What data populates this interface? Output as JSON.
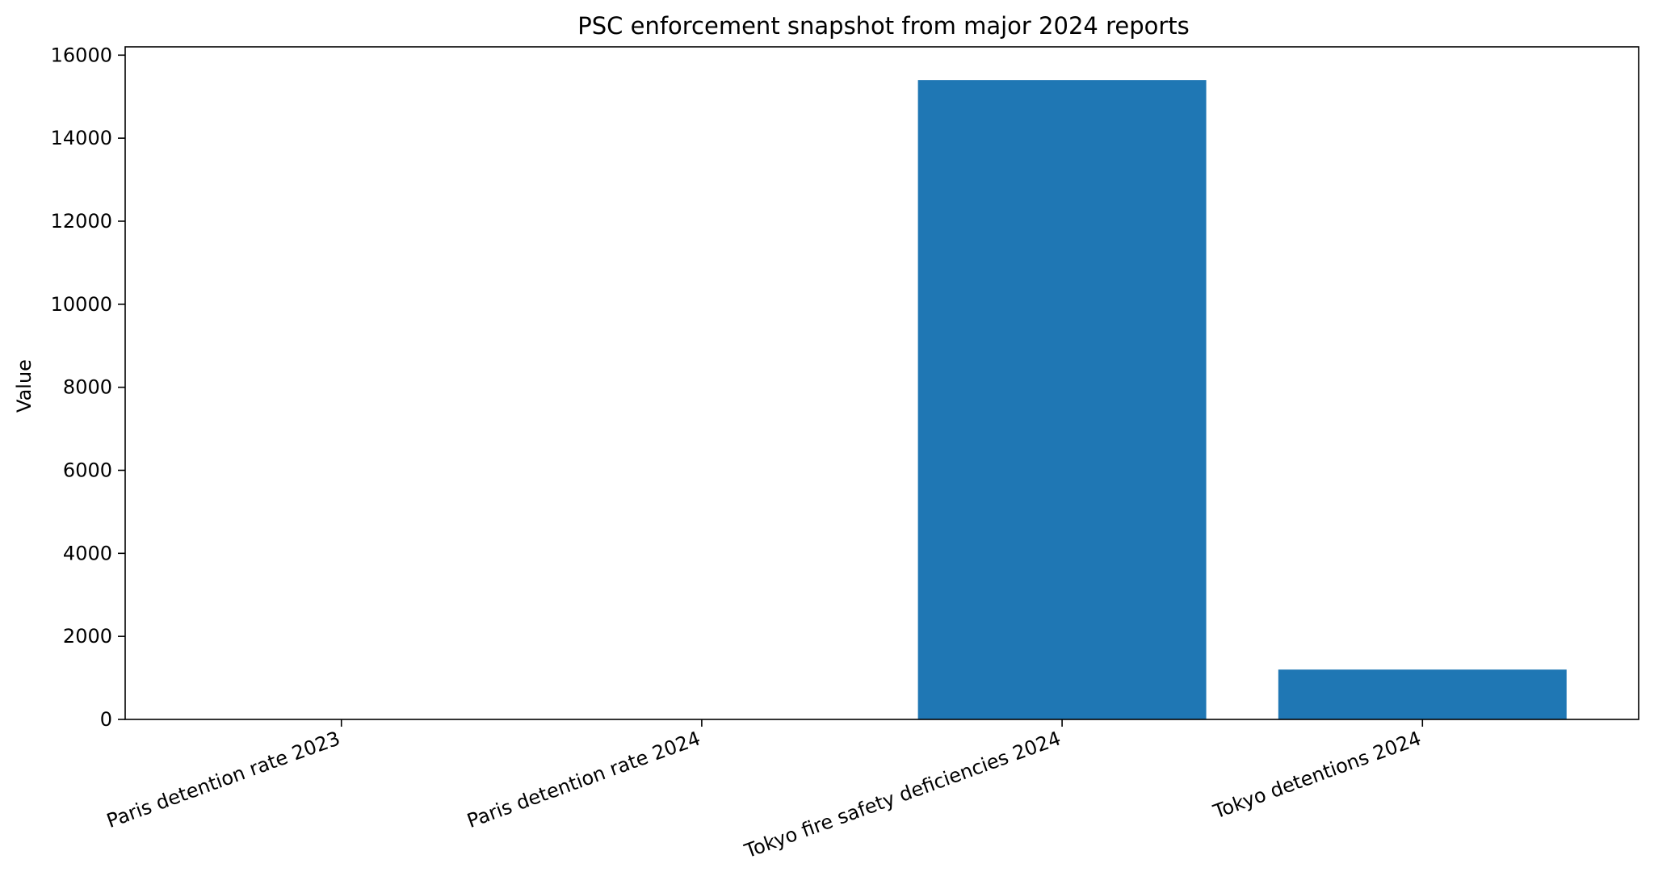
{
  "chart_data": {
    "type": "bar",
    "title": "PSC enforcement snapshot from major 2024 reports",
    "xlabel": "",
    "ylabel": "Value",
    "categories": [
      "Paris detention rate 2023",
      "Paris detention rate 2024",
      "Tokyo fire safety deficiencies 2024",
      "Tokyo detentions 2024"
    ],
    "values": [
      3.5,
      3.2,
      15400,
      1200
    ],
    "ylim": [
      0,
      16200
    ],
    "yticks": [
      0,
      2000,
      4000,
      6000,
      8000,
      10000,
      12000,
      14000,
      16000
    ],
    "bar_color": "#1f77b4",
    "grid": false,
    "legend": "none"
  }
}
